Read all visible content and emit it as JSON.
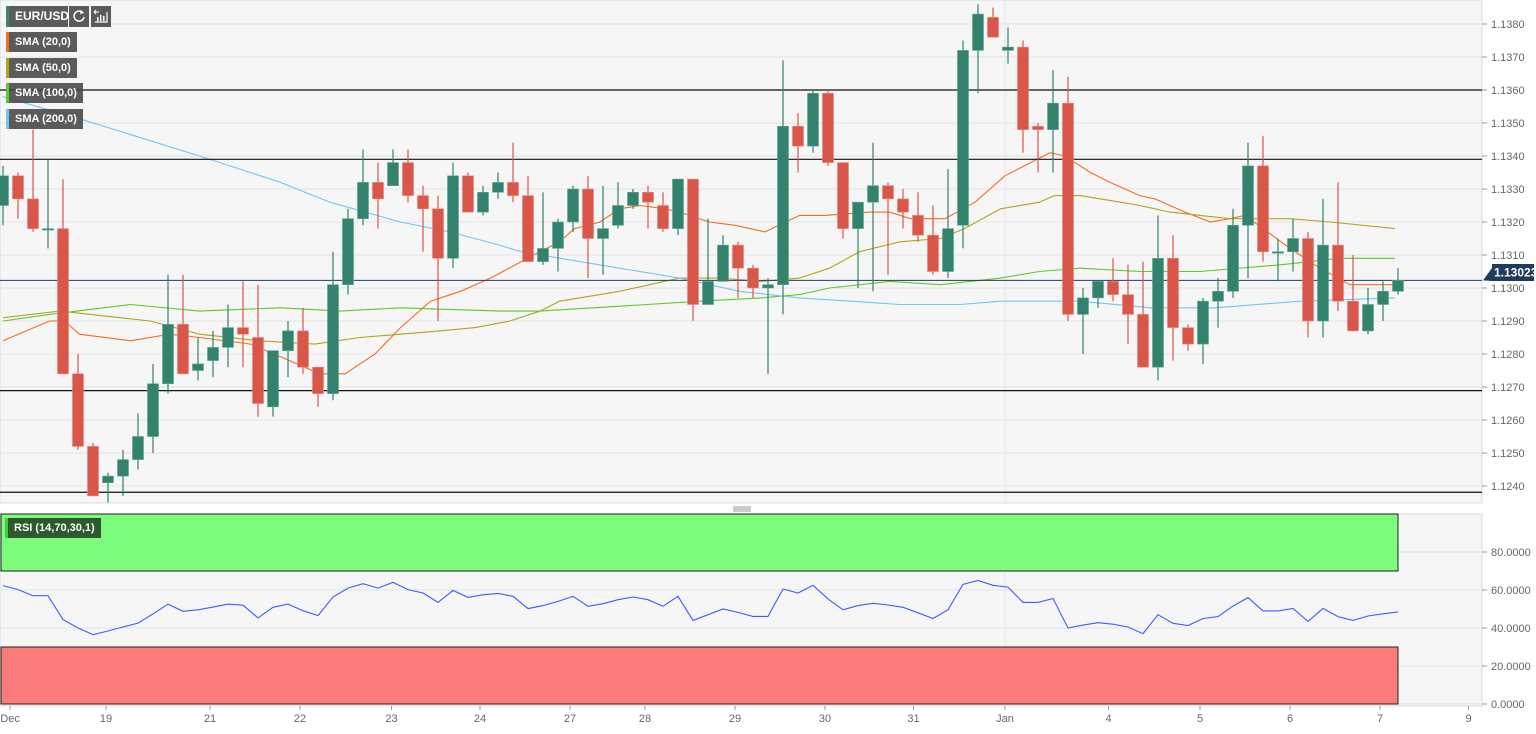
{
  "legend": {
    "symbol": "EUR/USD",
    "refresh_icon": "refresh-icon",
    "indicator_icon": "chart-settings-icon",
    "symbol_color": "#2e8b74"
  },
  "rsi_legend": {
    "label": "RSI (14,70,30,1)",
    "color": "#2d5a2d"
  },
  "colors": {
    "up": "#32826e",
    "down": "#d9574a",
    "last_price_bg": "#1f3c5e",
    "overbought": "#7dfb7d",
    "oversold": "#fb7b7b",
    "rsi_line": "#3d5cff"
  },
  "chart_data": {
    "type": "candlestick",
    "title": "EUR/USD",
    "ylim": [
      1.12348,
      1.13873
    ],
    "grid": true,
    "y_ticks": [
      "1.1380",
      "1.1370",
      "1.1360",
      "1.1350",
      "1.1340",
      "1.1330",
      "1.1320",
      "1.1310",
      "1.1300",
      "1.1290",
      "1.1280",
      "1.1270",
      "1.1260",
      "1.1250",
      "1.1240"
    ],
    "y_tick_values": [
      1.138,
      1.137,
      1.136,
      1.135,
      1.134,
      1.133,
      1.132,
      1.131,
      1.13,
      1.129,
      1.128,
      1.127,
      1.126,
      1.125,
      1.124
    ],
    "last_price": "1.13023",
    "last_price_value": 1.13023,
    "horizontal_levels": [
      1.136,
      1.1339,
      1.12689,
      1.12381
    ],
    "x_ticks": [
      {
        "label": "Dec",
        "pos": 0.47
      },
      {
        "label": "19",
        "pos": 6.87
      },
      {
        "label": "21",
        "pos": 13.8
      },
      {
        "label": "22",
        "pos": 19.8
      },
      {
        "label": "23",
        "pos": 25.9
      },
      {
        "label": "24",
        "pos": 31.8
      },
      {
        "label": "27",
        "pos": 37.8
      },
      {
        "label": "28",
        "pos": 42.8
      },
      {
        "label": "29",
        "pos": 48.8
      },
      {
        "label": "30",
        "pos": 54.8
      },
      {
        "label": "31",
        "pos": 60.7
      },
      {
        "label": "Jan",
        "pos": 66.8
      },
      {
        "label": "4",
        "pos": 73.7
      },
      {
        "label": "5",
        "pos": 79.8
      },
      {
        "label": "6",
        "pos": 85.8
      },
      {
        "label": "7",
        "pos": 91.8
      },
      {
        "label": "9",
        "pos": 97.7
      }
    ],
    "candles_ohlc": [
      [
        1.1325,
        1.1337,
        1.1319,
        1.1334
      ],
      [
        1.1334,
        1.1335,
        1.1321,
        1.1327
      ],
      [
        1.1327,
        1.1348,
        1.1317,
        1.1318
      ],
      [
        1.1318,
        1.1339,
        1.1312,
        1.1318
      ],
      [
        1.1318,
        1.1333,
        1.1274,
        1.1274
      ],
      [
        1.1274,
        1.128,
        1.1251,
        1.1252
      ],
      [
        1.1252,
        1.1253,
        1.1237,
        1.1237
      ],
      [
        1.1241,
        1.1244,
        1.1235,
        1.1243
      ],
      [
        1.1243,
        1.1251,
        1.1237,
        1.1248
      ],
      [
        1.1248,
        1.1262,
        1.1245,
        1.1255
      ],
      [
        1.1255,
        1.1277,
        1.125,
        1.1271
      ],
      [
        1.1271,
        1.1304,
        1.1268,
        1.1289
      ],
      [
        1.1289,
        1.1304,
        1.1274,
        1.1274
      ],
      [
        1.1275,
        1.1285,
        1.1272,
        1.1277
      ],
      [
        1.1278,
        1.1287,
        1.1273,
        1.1282
      ],
      [
        1.1282,
        1.1295,
        1.1276,
        1.1288
      ],
      [
        1.1288,
        1.1302,
        1.1276,
        1.1286
      ],
      [
        1.1285,
        1.1301,
        1.1261,
        1.1265
      ],
      [
        1.1264,
        1.1281,
        1.1261,
        1.1281
      ],
      [
        1.1281,
        1.129,
        1.1273,
        1.1287
      ],
      [
        1.1287,
        1.1294,
        1.1274,
        1.1276
      ],
      [
        1.1276,
        1.1276,
        1.1264,
        1.1268
      ],
      [
        1.1268,
        1.1311,
        1.1266,
        1.1301
      ],
      [
        1.1301,
        1.1324,
        1.1298,
        1.1321
      ],
      [
        1.1321,
        1.1342,
        1.1319,
        1.1332
      ],
      [
        1.1332,
        1.1338,
        1.1318,
        1.1327
      ],
      [
        1.1331,
        1.1342,
        1.1331,
        1.1338
      ],
      [
        1.1338,
        1.1342,
        1.1326,
        1.1328
      ],
      [
        1.1328,
        1.1331,
        1.1311,
        1.1324
      ],
      [
        1.1324,
        1.1328,
        1.129,
        1.1309
      ],
      [
        1.1309,
        1.1338,
        1.1306,
        1.1334
      ],
      [
        1.1334,
        1.1335,
        1.1323,
        1.1323
      ],
      [
        1.1323,
        1.1331,
        1.1322,
        1.1329
      ],
      [
        1.1329,
        1.1335,
        1.1327,
        1.1332
      ],
      [
        1.1332,
        1.1344,
        1.1326,
        1.1328
      ],
      [
        1.1328,
        1.1334,
        1.1308,
        1.1308
      ],
      [
        1.1308,
        1.1329,
        1.1307,
        1.1312
      ],
      [
        1.1312,
        1.1321,
        1.1305,
        1.132
      ],
      [
        1.132,
        1.1331,
        1.1317,
        1.133
      ],
      [
        1.133,
        1.1334,
        1.1303,
        1.1315
      ],
      [
        1.1315,
        1.1331,
        1.1304,
        1.1318
      ],
      [
        1.1319,
        1.1332,
        1.1318,
        1.1325
      ],
      [
        1.1325,
        1.133,
        1.1324,
        1.1329
      ],
      [
        1.1329,
        1.1331,
        1.1318,
        1.1326
      ],
      [
        1.1325,
        1.1329,
        1.1317,
        1.1318
      ],
      [
        1.1318,
        1.1333,
        1.1316,
        1.1333
      ],
      [
        1.1333,
        1.1333,
        1.129,
        1.1295
      ],
      [
        1.1295,
        1.1321,
        1.1295,
        1.1302
      ],
      [
        1.1302,
        1.1316,
        1.1302,
        1.1313
      ],
      [
        1.1313,
        1.1314,
        1.1297,
        1.1306
      ],
      [
        1.1306,
        1.1307,
        1.1297,
        1.13
      ],
      [
        1.13,
        1.1303,
        1.1274,
        1.1301
      ],
      [
        1.1301,
        1.1369,
        1.1292,
        1.1349
      ],
      [
        1.1349,
        1.1353,
        1.1335,
        1.1343
      ],
      [
        1.1343,
        1.136,
        1.1341,
        1.1359
      ],
      [
        1.1359,
        1.136,
        1.1337,
        1.1338
      ],
      [
        1.1338,
        1.1338,
        1.1315,
        1.1318
      ],
      [
        1.1318,
        1.1326,
        1.13,
        1.1326
      ],
      [
        1.1326,
        1.1344,
        1.1299,
        1.1331
      ],
      [
        1.1331,
        1.1332,
        1.1304,
        1.1327
      ],
      [
        1.1327,
        1.133,
        1.1318,
        1.1323
      ],
      [
        1.1322,
        1.1329,
        1.1314,
        1.1316
      ],
      [
        1.1316,
        1.1325,
        1.1304,
        1.1305
      ],
      [
        1.1305,
        1.1336,
        1.1303,
        1.1318
      ],
      [
        1.1319,
        1.1375,
        1.1312,
        1.1372
      ],
      [
        1.1372,
        1.1386,
        1.1359,
        1.1383
      ],
      [
        1.1382,
        1.1385,
        1.1376,
        1.1376
      ],
      [
        1.1372,
        1.1379,
        1.1368,
        1.1373
      ],
      [
        1.1373,
        1.1375,
        1.1341,
        1.1348
      ],
      [
        1.1349,
        1.135,
        1.1335,
        1.1348
      ],
      [
        1.1348,
        1.1366,
        1.1335,
        1.1356
      ],
      [
        1.1356,
        1.1364,
        1.129,
        1.1292
      ],
      [
        1.1292,
        1.13,
        1.128,
        1.1297
      ],
      [
        1.1297,
        1.1302,
        1.1294,
        1.1302
      ],
      [
        1.1302,
        1.1309,
        1.1296,
        1.1298
      ],
      [
        1.1298,
        1.1307,
        1.1283,
        1.1292
      ],
      [
        1.1292,
        1.1308,
        1.1276,
        1.1276
      ],
      [
        1.1276,
        1.1322,
        1.1272,
        1.1309
      ],
      [
        1.1309,
        1.1316,
        1.1278,
        1.1288
      ],
      [
        1.1288,
        1.1289,
        1.1281,
        1.1283
      ],
      [
        1.1283,
        1.1297,
        1.1277,
        1.1296
      ],
      [
        1.1296,
        1.1303,
        1.1288,
        1.1299
      ],
      [
        1.1299,
        1.1324,
        1.1297,
        1.1319
      ],
      [
        1.1319,
        1.1344,
        1.1303,
        1.1337
      ],
      [
        1.1337,
        1.1346,
        1.1308,
        1.1311
      ],
      [
        1.1311,
        1.1315,
        1.1302,
        1.1311
      ],
      [
        1.1311,
        1.1321,
        1.1305,
        1.1315
      ],
      [
        1.1315,
        1.1317,
        1.1285,
        1.129
      ],
      [
        1.129,
        1.1327,
        1.1285,
        1.1313
      ],
      [
        1.1313,
        1.1332,
        1.1293,
        1.1296
      ],
      [
        1.1296,
        1.131,
        1.1287,
        1.1287
      ],
      [
        1.1287,
        1.13,
        1.1286,
        1.1295
      ],
      [
        1.1295,
        1.1302,
        1.129,
        1.1299
      ],
      [
        1.1299,
        1.1306,
        1.1298,
        1.13023
      ]
    ],
    "series": [
      {
        "name": "SMA (20,0)",
        "color": "#f26d21",
        "points": [
          [
            0,
            1.1284
          ],
          [
            3.1,
            1.129
          ],
          [
            4.1,
            1.129
          ],
          [
            5.1,
            1.1286
          ],
          [
            8.5,
            1.1284
          ],
          [
            11.1,
            1.1286
          ],
          [
            13.1,
            1.1285
          ],
          [
            16.5,
            1.1283
          ],
          [
            19.1,
            1.1278
          ],
          [
            21.1,
            1.1274
          ],
          [
            22.8,
            1.1274
          ],
          [
            24.8,
            1.128
          ],
          [
            26.5,
            1.1288
          ],
          [
            28.5,
            1.1296
          ],
          [
            30.5,
            1.1299
          ],
          [
            32.5,
            1.1303
          ],
          [
            35.8,
            1.1311
          ],
          [
            37.1,
            1.1314
          ],
          [
            38.1,
            1.1318
          ],
          [
            39.8,
            1.132
          ],
          [
            41.1,
            1.1324
          ],
          [
            42.5,
            1.1325
          ],
          [
            44.1,
            1.1324
          ],
          [
            45.1,
            1.1323
          ],
          [
            47.1,
            1.132
          ],
          [
            48.8,
            1.1319
          ],
          [
            50.8,
            1.1317
          ],
          [
            53.1,
            1.1322
          ],
          [
            54.8,
            1.1322
          ],
          [
            57.8,
            1.1323
          ],
          [
            59.1,
            1.1323
          ],
          [
            60.5,
            1.1321
          ],
          [
            62.8,
            1.1321
          ],
          [
            64.8,
            1.1326
          ],
          [
            66.8,
            1.1334
          ],
          [
            68.5,
            1.1338
          ],
          [
            69.8,
            1.1341
          ],
          [
            70.8,
            1.134
          ],
          [
            72.5,
            1.1335
          ],
          [
            73.8,
            1.1332
          ],
          [
            75.8,
            1.1328
          ],
          [
            76.8,
            1.1327
          ],
          [
            78.8,
            1.1323
          ],
          [
            80.5,
            1.132
          ],
          [
            81.8,
            1.1321
          ],
          [
            82.8,
            1.1322
          ],
          [
            85.8,
            1.1312
          ],
          [
            87.8,
            1.1306
          ],
          [
            89.8,
            1.1301
          ],
          [
            92.8,
            1.1301
          ]
        ]
      },
      {
        "name": "SMA (50,0)",
        "color": "#b5a21a",
        "points": [
          [
            0,
            1.1291
          ],
          [
            3.8,
            1.1293
          ],
          [
            9.8,
            1.129
          ],
          [
            13.1,
            1.1286
          ],
          [
            17.1,
            1.1284
          ],
          [
            20.8,
            1.1283
          ],
          [
            23.8,
            1.1285
          ],
          [
            26.5,
            1.1286
          ],
          [
            29.1,
            1.1287
          ],
          [
            31.5,
            1.1288
          ],
          [
            33.8,
            1.129
          ],
          [
            35.8,
            1.1293
          ],
          [
            37.1,
            1.1296
          ],
          [
            39.8,
            1.1298
          ],
          [
            41.1,
            1.1299
          ],
          [
            43.1,
            1.1301
          ],
          [
            45.1,
            1.1303
          ],
          [
            47.8,
            1.1303
          ],
          [
            50.5,
            1.1302
          ],
          [
            53.1,
            1.1303
          ],
          [
            55.1,
            1.1306
          ],
          [
            57.1,
            1.1311
          ],
          [
            59.8,
            1.1314
          ],
          [
            62.5,
            1.1315
          ],
          [
            64.1,
            1.1318
          ],
          [
            66.5,
            1.1324
          ],
          [
            69.1,
            1.1326
          ],
          [
            70.1,
            1.1328
          ],
          [
            71.8,
            1.1328
          ],
          [
            74.5,
            1.1326
          ],
          [
            75.8,
            1.1325
          ],
          [
            77.8,
            1.1323
          ],
          [
            79.8,
            1.1322
          ],
          [
            81.8,
            1.1321
          ],
          [
            85.8,
            1.1321
          ],
          [
            88.5,
            1.132
          ],
          [
            92.8,
            1.1318
          ]
        ]
      },
      {
        "name": "SMA (100,0)",
        "color": "#5ec92a",
        "points": [
          [
            0,
            1.129
          ],
          [
            3.1,
            1.1292
          ],
          [
            8.5,
            1.1295
          ],
          [
            13.1,
            1.1293
          ],
          [
            18.5,
            1.1294
          ],
          [
            22.5,
            1.1293
          ],
          [
            26.5,
            1.1294
          ],
          [
            33.1,
            1.1293
          ],
          [
            35.8,
            1.1293
          ],
          [
            46.5,
            1.1296
          ],
          [
            50.5,
            1.1297
          ],
          [
            53.1,
            1.1298
          ],
          [
            55.1,
            1.13
          ],
          [
            59.1,
            1.1302
          ],
          [
            62.5,
            1.1301
          ],
          [
            66.5,
            1.1303
          ],
          [
            69.1,
            1.1305
          ],
          [
            71.8,
            1.1306
          ],
          [
            75.8,
            1.1305
          ],
          [
            79.8,
            1.1305
          ],
          [
            85.1,
            1.1307
          ],
          [
            89.1,
            1.1309
          ],
          [
            92.8,
            1.1309
          ]
        ]
      },
      {
        "name": "SMA (200,0)",
        "color": "#6ec6f5",
        "points": [
          [
            0,
            1.1358
          ],
          [
            5.3,
            1.1351
          ],
          [
            13.1,
            1.134
          ],
          [
            18.5,
            1.1332
          ],
          [
            21.8,
            1.1326
          ],
          [
            26.5,
            1.132
          ],
          [
            29.8,
            1.1317
          ],
          [
            33.1,
            1.1313
          ],
          [
            34.5,
            1.1311
          ],
          [
            39.8,
            1.1307
          ],
          [
            45.1,
            1.1303
          ],
          [
            49.1,
            1.1299
          ],
          [
            53.1,
            1.1297
          ],
          [
            56.5,
            1.1296
          ],
          [
            59.8,
            1.1295
          ],
          [
            63.8,
            1.1295
          ],
          [
            66.5,
            1.1296
          ],
          [
            71.8,
            1.1296
          ],
          [
            76.5,
            1.1294
          ],
          [
            80.8,
            1.1294
          ],
          [
            86.5,
            1.1296
          ],
          [
            92.8,
            1.1297
          ]
        ]
      }
    ],
    "rsi": {
      "name": "RSI (14,70,30,1)",
      "overbought": 70,
      "oversold": 30,
      "ylim": [
        0,
        100
      ],
      "y_ticks": [
        "80.0000",
        "60.0000",
        "40.0000",
        "20.0000",
        "0.0000"
      ],
      "y_tick_values": [
        80,
        60,
        40,
        20,
        0
      ],
      "values": [
        62.3,
        60.2,
        57,
        57,
        44.4,
        40,
        36.5,
        38.4,
        40.5,
        42.6,
        47.4,
        52.6,
        48.8,
        49.6,
        51,
        52.6,
        52,
        45.3,
        50.9,
        52.6,
        49.1,
        46.5,
        56.3,
        61,
        63.3,
        61,
        64,
        60.2,
        58.4,
        53.5,
        59.8,
        56.1,
        57.5,
        58.2,
        56.7,
        50.2,
        51.8,
        54,
        56.7,
        51.4,
        52.8,
        54.9,
        56.3,
        54.9,
        51.4,
        56.7,
        44,
        47,
        50,
        48.2,
        46.1,
        46.1,
        60.5,
        58.4,
        62.5,
        55.3,
        49.6,
        51.8,
        53,
        52.1,
        50.9,
        48,
        45,
        49.6,
        63,
        65,
        62.5,
        61.5,
        53.5,
        53.5,
        55.5,
        40,
        41.5,
        42.8,
        42,
        40.5,
        37,
        47,
        42.5,
        41.3,
        45,
        46,
        51.5,
        56,
        49,
        49,
        50.3,
        43.5,
        50.3,
        46,
        44,
        46.3,
        47.5,
        48.5
      ]
    }
  }
}
